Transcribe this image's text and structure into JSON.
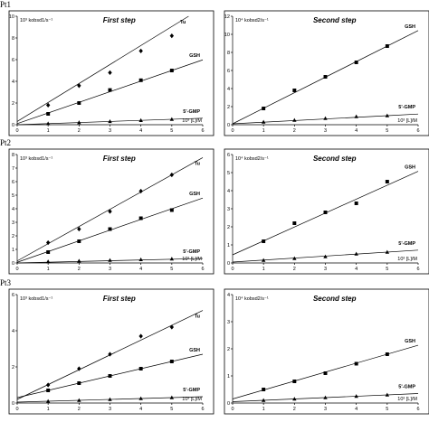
{
  "row_labels": [
    "Pt1",
    "Pt2",
    "Pt3"
  ],
  "chart_data": [
    {
      "type": "scatter",
      "row": 0,
      "col": 0,
      "title": "First step",
      "ylabel": "10³ kobsd1/s⁻¹",
      "xlabel": "10³ [L]/M",
      "xlim": [
        0,
        6
      ],
      "ylim": [
        0,
        10
      ],
      "xticks": [
        0,
        1,
        2,
        3,
        4,
        5,
        6
      ],
      "yticks": [
        0,
        2,
        4,
        6,
        8,
        10
      ],
      "series": [
        {
          "name": "Tu",
          "marker": "diamond",
          "x": [
            1,
            2,
            3,
            4,
            5
          ],
          "y": [
            1.8,
            3.6,
            4.8,
            6.8,
            8.2
          ],
          "fit": [
            0.3,
            1.75
          ]
        },
        {
          "name": "GSH",
          "marker": "square",
          "x": [
            1,
            2,
            3,
            4,
            5
          ],
          "y": [
            1.0,
            2.0,
            3.2,
            4.1,
            5.0
          ],
          "fit": [
            0.1,
            0.98
          ]
        },
        {
          "name": "5'-GMP",
          "marker": "triangle",
          "x": [
            1,
            2,
            3,
            4,
            5
          ],
          "y": [
            0.1,
            0.2,
            0.3,
            0.4,
            0.5
          ],
          "fit": [
            0.0,
            0.1
          ]
        }
      ]
    },
    {
      "type": "scatter",
      "row": 0,
      "col": 1,
      "title": "Second step",
      "ylabel": "10⁴ kobsd2/s⁻¹",
      "xlabel": "10³ [L]/M",
      "xlim": [
        0,
        6
      ],
      "ylim": [
        0,
        12
      ],
      "xticks": [
        0,
        1,
        2,
        3,
        4,
        5,
        6
      ],
      "yticks": [
        0,
        2,
        4,
        6,
        8,
        10,
        12
      ],
      "series": [
        {
          "name": "GSH",
          "marker": "square",
          "x": [
            1,
            2,
            3,
            4,
            5
          ],
          "y": [
            1.8,
            3.8,
            5.3,
            6.9,
            8.7
          ],
          "fit": [
            0.1,
            1.72
          ]
        },
        {
          "name": "5'-GMP",
          "marker": "triangle",
          "x": [
            1,
            2,
            3,
            4,
            5
          ],
          "y": [
            0.3,
            0.5,
            0.7,
            0.9,
            1.0
          ],
          "fit": [
            0.1,
            0.18
          ]
        }
      ]
    },
    {
      "type": "scatter",
      "row": 1,
      "col": 0,
      "title": "First step",
      "ylabel": "10³ kobsd1/s⁻¹",
      "xlabel": "10³ [L]/M",
      "xlim": [
        0,
        6
      ],
      "ylim": [
        0,
        8
      ],
      "xticks": [
        0,
        1,
        2,
        3,
        4,
        5,
        6
      ],
      "yticks": [
        0,
        1,
        2,
        3,
        4,
        5,
        6,
        7,
        8
      ],
      "series": [
        {
          "name": "Tu",
          "marker": "diamond",
          "x": [
            1,
            2,
            3,
            4,
            5
          ],
          "y": [
            1.5,
            2.5,
            3.8,
            5.3,
            6.5
          ],
          "fit": [
            0.15,
            1.27
          ]
        },
        {
          "name": "GSH",
          "marker": "square",
          "x": [
            1,
            2,
            3,
            4,
            5
          ],
          "y": [
            0.8,
            1.6,
            2.5,
            3.3,
            3.9
          ],
          "fit": [
            0.05,
            0.79
          ]
        },
        {
          "name": "5'-GMP",
          "marker": "triangle",
          "x": [
            1,
            2,
            3,
            4,
            5
          ],
          "y": [
            0.1,
            0.15,
            0.2,
            0.25,
            0.3
          ],
          "fit": [
            0.0,
            0.055
          ]
        }
      ]
    },
    {
      "type": "scatter",
      "row": 1,
      "col": 1,
      "title": "Second step",
      "ylabel": "10⁴ kobsd2/s⁻¹",
      "xlabel": "10³ [L]/M",
      "xlim": [
        0,
        6
      ],
      "ylim": [
        0,
        6
      ],
      "xticks": [
        0,
        1,
        2,
        3,
        4,
        5,
        6
      ],
      "yticks": [
        0,
        1,
        2,
        3,
        4,
        5,
        6
      ],
      "series": [
        {
          "name": "GSH",
          "marker": "square",
          "x": [
            1,
            2,
            3,
            4,
            5
          ],
          "y": [
            1.2,
            2.2,
            2.8,
            3.3,
            4.5
          ],
          "fit": [
            0.45,
            0.77
          ]
        },
        {
          "name": "5'-GMP",
          "marker": "triangle",
          "x": [
            1,
            2,
            3,
            4,
            5
          ],
          "y": [
            0.15,
            0.25,
            0.35,
            0.5,
            0.6
          ],
          "fit": [
            0.05,
            0.11
          ]
        }
      ]
    },
    {
      "type": "scatter",
      "row": 2,
      "col": 0,
      "title": "First step",
      "ylabel": "10³ kobsd1/s⁻¹",
      "xlabel": "10³ [L]/M",
      "xlim": [
        0,
        6
      ],
      "ylim": [
        0,
        6
      ],
      "xticks": [
        0,
        1,
        2,
        3,
        4,
        5,
        6
      ],
      "yticks": [
        0,
        2,
        4,
        6
      ],
      "series": [
        {
          "name": "Tu",
          "marker": "diamond",
          "x": [
            1,
            2,
            3,
            4,
            5
          ],
          "y": [
            1.0,
            1.9,
            2.7,
            3.7,
            4.2
          ],
          "fit": [
            0.2,
            0.82
          ]
        },
        {
          "name": "GSH",
          "marker": "square",
          "x": [
            1,
            2,
            3,
            4,
            5
          ],
          "y": [
            0.7,
            1.1,
            1.5,
            1.9,
            2.3
          ],
          "fit": [
            0.3,
            0.4
          ]
        },
        {
          "name": "5'-GMP",
          "marker": "triangle",
          "x": [
            1,
            2,
            3,
            4,
            5
          ],
          "y": [
            0.1,
            0.15,
            0.2,
            0.25,
            0.3
          ],
          "fit": [
            0.05,
            0.05
          ]
        }
      ]
    },
    {
      "type": "scatter",
      "row": 2,
      "col": 1,
      "title": "Second step",
      "ylabel": "10⁴ kobsd2/s⁻¹",
      "xlabel": "10³ [L]/M",
      "xlim": [
        0,
        6
      ],
      "ylim": [
        0,
        4
      ],
      "xticks": [
        0,
        1,
        2,
        3,
        4,
        5,
        6
      ],
      "yticks": [
        0,
        1,
        2,
        3,
        4
      ],
      "series": [
        {
          "name": "GSH",
          "marker": "square",
          "x": [
            1,
            2,
            3,
            4,
            5
          ],
          "y": [
            0.5,
            0.8,
            1.1,
            1.45,
            1.8
          ],
          "fit": [
            0.15,
            0.33
          ]
        },
        {
          "name": "5'-GMP",
          "marker": "triangle",
          "x": [
            1,
            2,
            3,
            4,
            5
          ],
          "y": [
            0.1,
            0.15,
            0.2,
            0.25,
            0.3
          ],
          "fit": [
            0.05,
            0.05
          ]
        }
      ]
    }
  ]
}
